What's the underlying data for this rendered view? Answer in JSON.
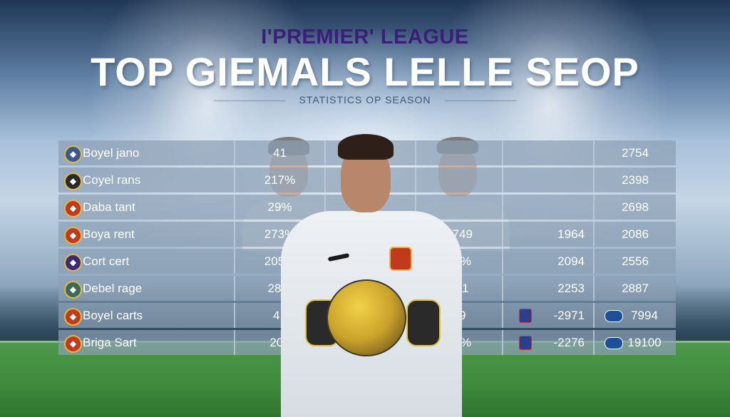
{
  "header": {
    "league": "I'PREMIER' LEAGUE",
    "title": "TOP GIEMALS LELLE SEOP",
    "subtitle": "STATISTICS OP SEASON"
  },
  "table": {
    "rows": [
      {
        "team": "Boyel jano",
        "crest_icon": "club-crest-icon",
        "crest_color": "#3a5a8c",
        "v1": "41",
        "v2": "",
        "v3": "",
        "v4": "",
        "v5": "2754"
      },
      {
        "team": "Coyel rans",
        "crest_icon": "club-crest-icon",
        "crest_color": "#2a2a2a",
        "v1": "217%",
        "v2": "",
        "v3": "",
        "v4": "",
        "v5": "2398"
      },
      {
        "team": "Daba tant",
        "crest_icon": "club-crest-icon",
        "crest_color": "#c23a1e",
        "v1": "29%",
        "v2": "",
        "v3": "",
        "v4": "",
        "v5": "2698"
      },
      {
        "team": "Boya rent",
        "crest_icon": "club-crest-icon",
        "crest_color": "#c23a1e",
        "v1": "273%",
        "v2": "",
        "v3": "1749",
        "v4": "1964",
        "v5": "2086"
      },
      {
        "team": "Cort cert",
        "crest_icon": "club-crest-icon",
        "crest_color": "#3a2a7a",
        "v1": "205%",
        "v2": "",
        "v3": "89%",
        "v4": "2094",
        "v5": "2556"
      },
      {
        "team": "Debel rage",
        "crest_icon": "club-crest-icon",
        "crest_color": "#3a6a5a",
        "v1": "28%",
        "v2": "",
        "v3": "211",
        "v4": "2253",
        "v5": "2887"
      },
      {
        "team": "Boyel carts",
        "crest_icon": "club-crest-icon",
        "crest_color": "#c23a1e",
        "v1": "41",
        "v2": "",
        "v3": "79",
        "v4": "-2971",
        "v5": "7994"
      },
      {
        "team": "Briga Sart",
        "crest_icon": "club-crest-icon",
        "crest_color": "#c23a1e",
        "v1": "202",
        "v2": "",
        "v3": "38%",
        "v4": "-2276",
        "v5": "19100"
      }
    ]
  }
}
